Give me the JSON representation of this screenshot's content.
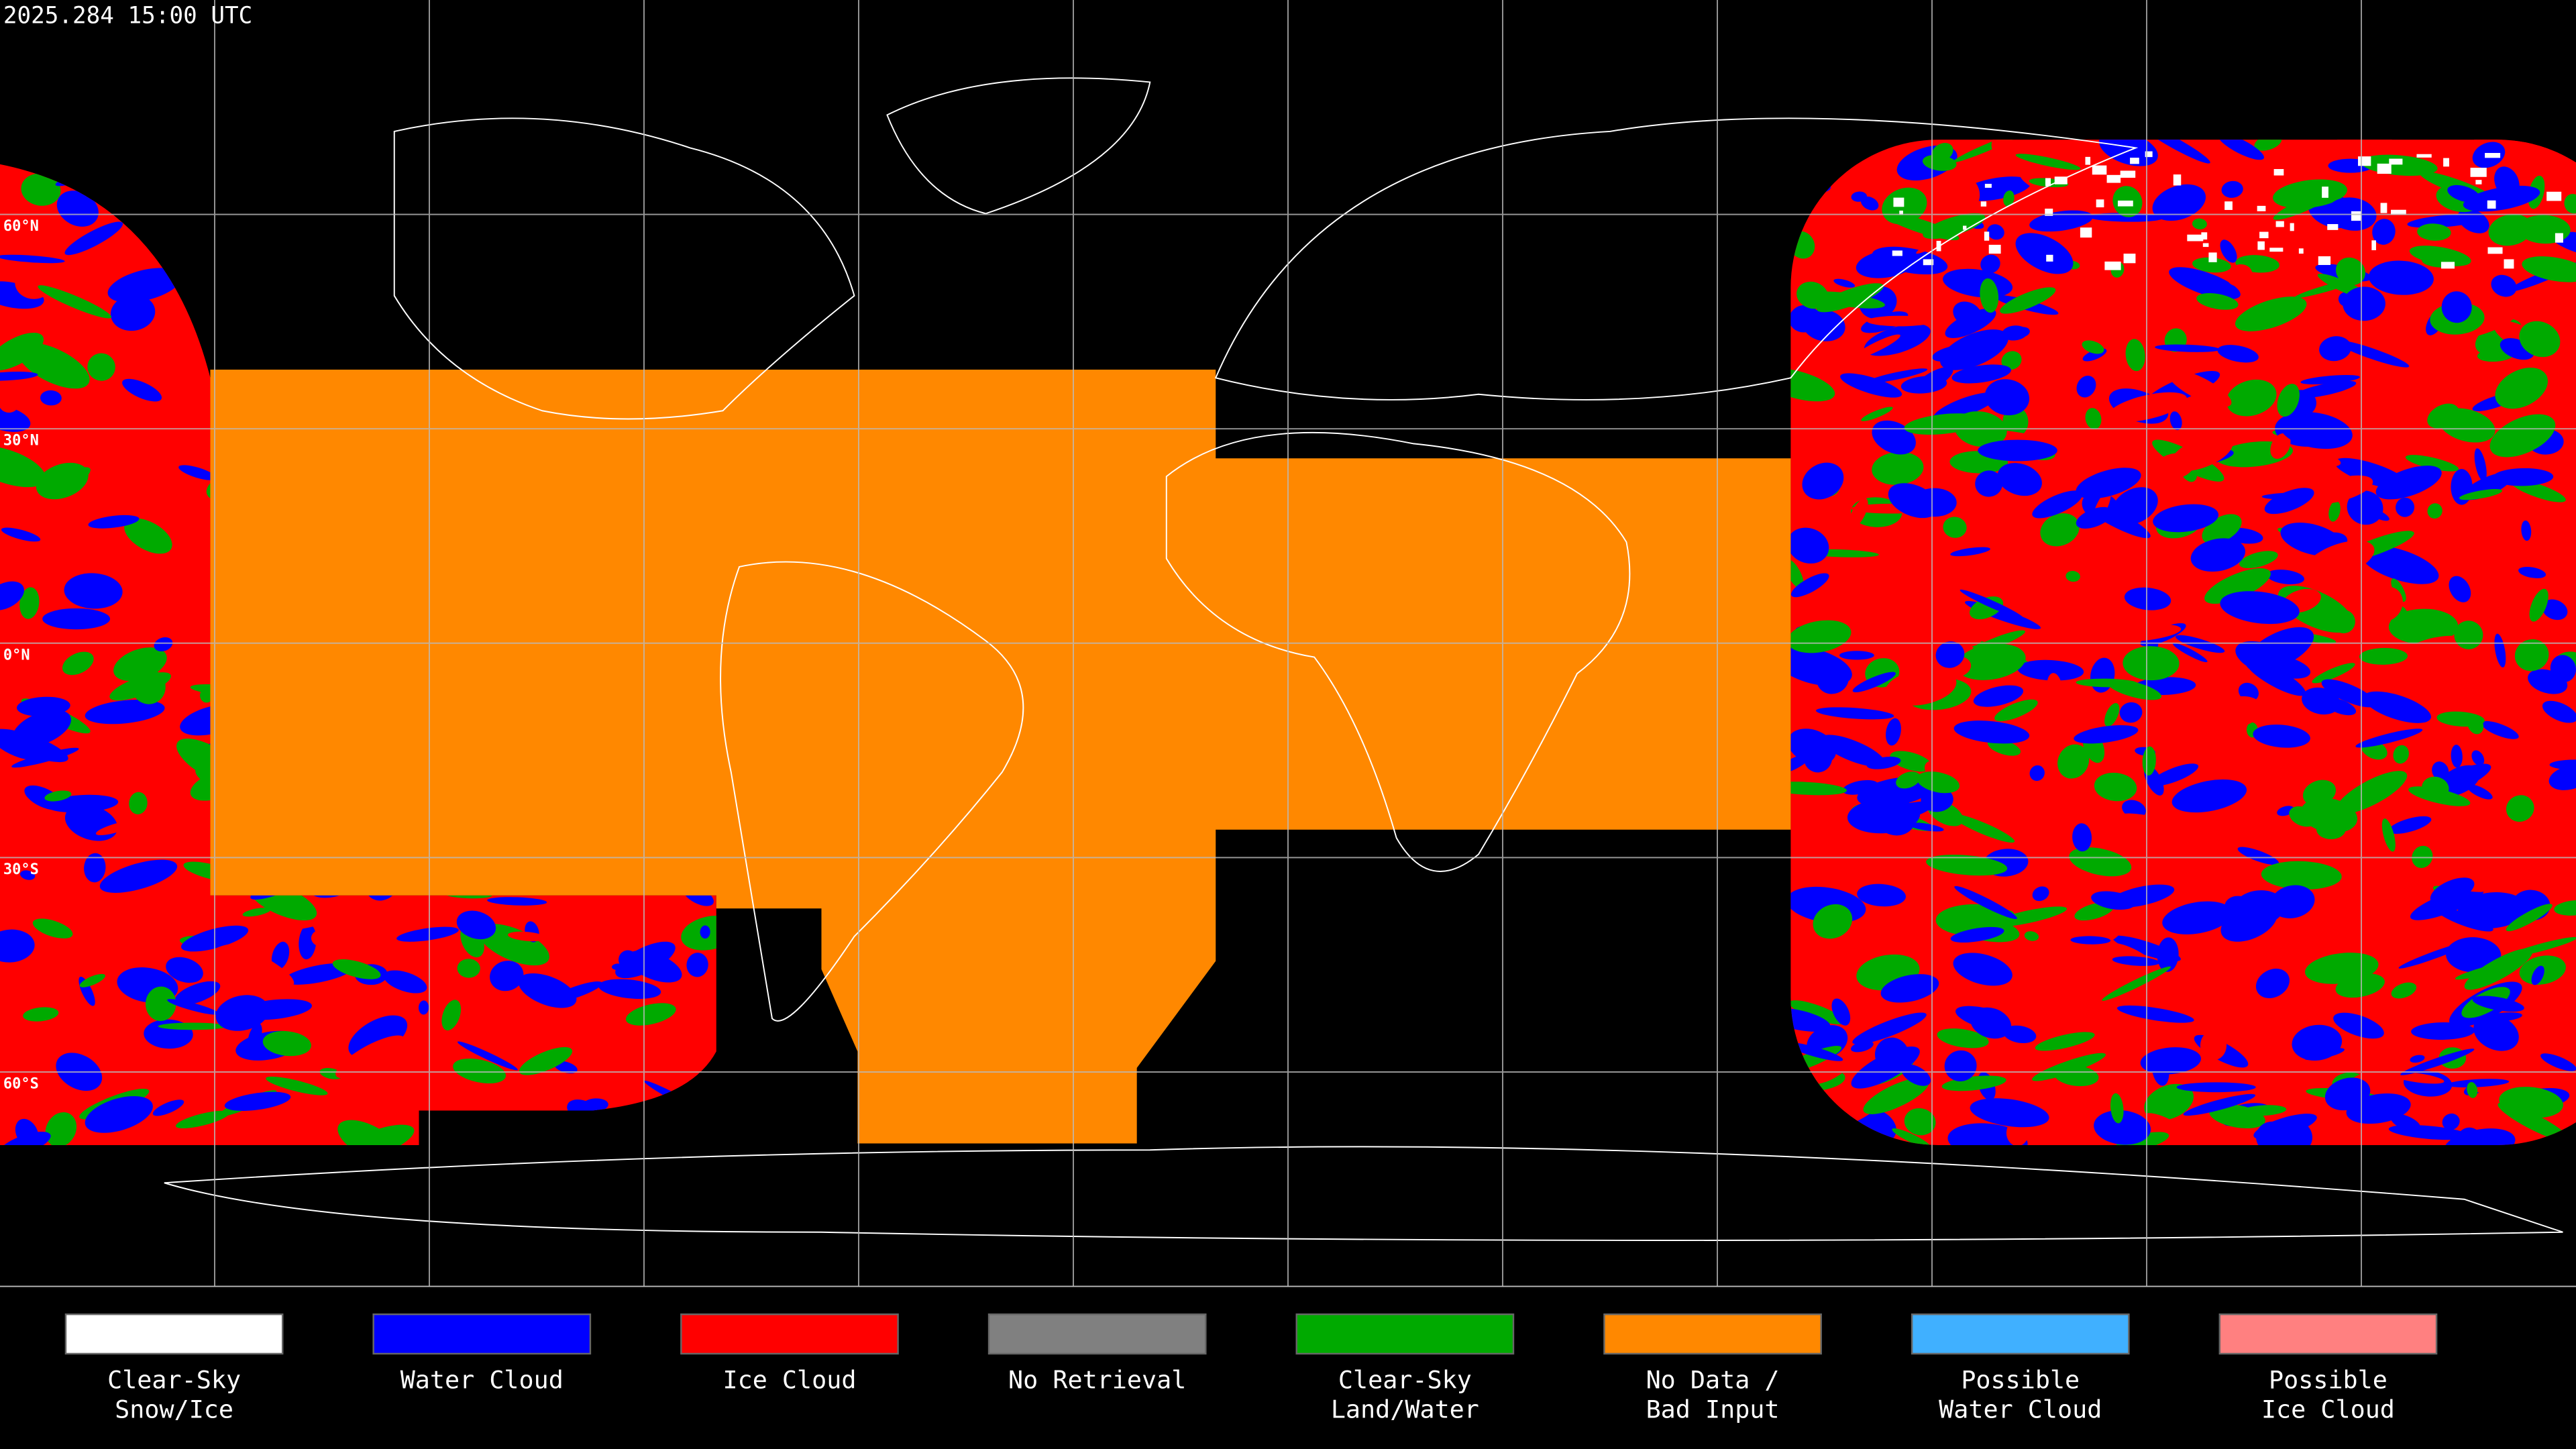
{
  "timestamp": "2025.284 15:00 UTC",
  "lat_labels": [
    "60°N",
    "30°N",
    "0°N",
    "30°S",
    "60°S"
  ],
  "legend": [
    {
      "lines": [
        "Clear-Sky",
        "Snow/Ice"
      ],
      "color": "#ffffff"
    },
    {
      "lines": [
        "Water Cloud"
      ],
      "color": "#0000ff"
    },
    {
      "lines": [
        "Ice Cloud"
      ],
      "color": "#ff0000"
    },
    {
      "lines": [
        "No Retrieval"
      ],
      "color": "#808080"
    },
    {
      "lines": [
        "Clear-Sky",
        "Land/Water"
      ],
      "color": "#00aa00"
    },
    {
      "lines": [
        "No Data /",
        "Bad Input"
      ],
      "color": "#ff8800"
    },
    {
      "lines": [
        "Possible",
        "Water Cloud"
      ],
      "color": "#40b0ff"
    },
    {
      "lines": [
        "Possible",
        "Ice Cloud"
      ],
      "color": "#ff8080"
    }
  ]
}
